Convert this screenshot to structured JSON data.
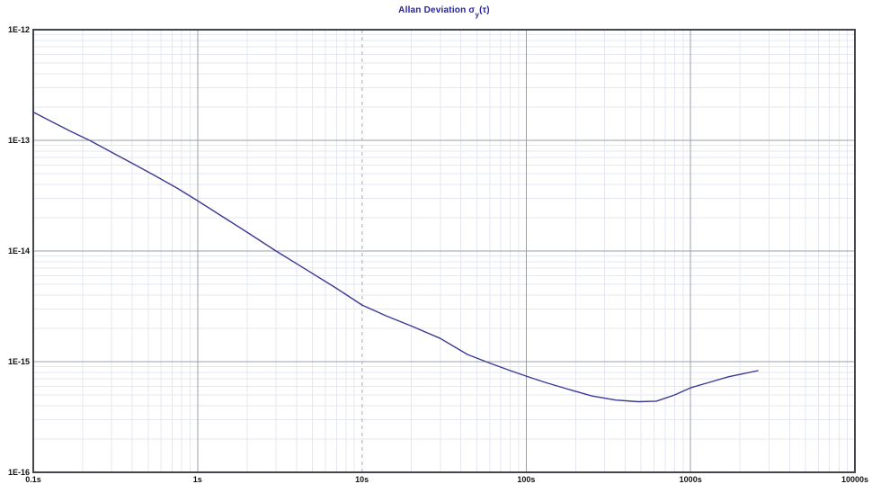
{
  "window": {
    "background": "#ffffff"
  },
  "title": {
    "prefix": "Allan Deviation σ",
    "subscript": "y",
    "suffix": "(τ)",
    "color": "#2323a3"
  },
  "colors": {
    "background": "#ffffff",
    "minor_grid": "#e4e7f1",
    "major_grid": "#9aa1ab",
    "frame": "#45454d",
    "cursor_line": "#c5c5c5",
    "tick_label": "#111111",
    "curve": "#3a3a94"
  },
  "chart_data": {
    "type": "line",
    "title": "Allan Deviation σy(τ)",
    "xlabel": "",
    "ylabel": "",
    "x_scale": "log",
    "y_scale": "log",
    "xlim": [
      0.1,
      10000
    ],
    "ylim": [
      1e-16,
      1e-12
    ],
    "x_tick_values": [
      0.1,
      1,
      10,
      100,
      1000,
      10000
    ],
    "x_tick_labels": [
      "0.1s",
      "1s",
      "10s",
      "100s",
      "1000s",
      "10000s"
    ],
    "y_tick_values": [
      1e-12,
      1e-13,
      1e-14,
      1e-15,
      1e-16
    ],
    "y_tick_labels": [
      "1E-12",
      "1E-13",
      "1E-14",
      "1E-15",
      "1E-16"
    ],
    "grid": {
      "major": true,
      "minor": true
    },
    "legend": "none",
    "cursor_line": {
      "x": 10,
      "style": "dashed"
    },
    "series": [
      {
        "name": "Allan deviation",
        "color": "#3a3a94",
        "points": [
          [
            0.1,
            1.8e-13
          ],
          [
            0.13,
            1.47e-13
          ],
          [
            0.17,
            1.2e-13
          ],
          [
            0.22,
            1e-13
          ],
          [
            0.3,
            7.8e-14
          ],
          [
            0.4,
            6.2e-14
          ],
          [
            0.55,
            4.8e-14
          ],
          [
            0.75,
            3.7e-14
          ],
          [
            1.0,
            2.85e-14
          ],
          [
            1.4,
            2.07e-14
          ],
          [
            2.0,
            1.48e-14
          ],
          [
            3.0,
            1e-14
          ],
          [
            4.5,
            6.9e-15
          ],
          [
            7.0,
            4.6e-15
          ],
          [
            10,
            3.25e-15
          ],
          [
            14,
            2.6e-15
          ],
          [
            20,
            2.1e-15
          ],
          [
            30,
            1.62e-15
          ],
          [
            44,
            1.16e-15
          ],
          [
            60,
            9.7e-16
          ],
          [
            80,
            8.3e-16
          ],
          [
            100,
            7.4e-16
          ],
          [
            130,
            6.5e-16
          ],
          [
            175,
            5.7e-16
          ],
          [
            250,
            4.9e-16
          ],
          [
            350,
            4.5e-16
          ],
          [
            480,
            4.35e-16
          ],
          [
            620,
            4.4e-16
          ],
          [
            800,
            5e-16
          ],
          [
            1000,
            5.8e-16
          ],
          [
            1300,
            6.5e-16
          ],
          [
            1700,
            7.3e-16
          ],
          [
            2100,
            7.8e-16
          ],
          [
            2570,
            8.3e-16
          ]
        ]
      }
    ]
  }
}
